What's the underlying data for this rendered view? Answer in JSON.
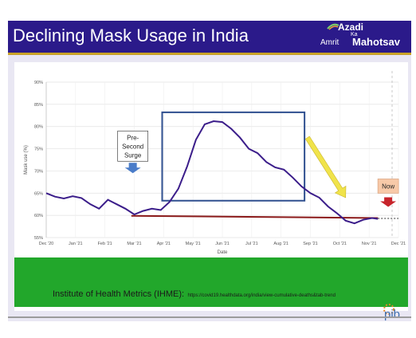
{
  "header": {
    "title": "Declining Mask Usage in India",
    "logo": {
      "line1": "Azadi",
      "line2": "Ka",
      "line3a": "Amrit",
      "line3b": "Mahotsav"
    }
  },
  "colors": {
    "title_bar": "#2b1a8a",
    "accent_gold": "#c9a227",
    "series_line": "#3b1d8a",
    "baseline": "#8b1a1a",
    "box": "#2f4f8f",
    "green_band": "#22a72b"
  },
  "chart_data": {
    "type": "line",
    "xlabel": "Date",
    "ylabel": "Mask use (%)",
    "ylim": [
      55,
      90
    ],
    "y_ticks": [
      "55%",
      "60%",
      "65%",
      "70%",
      "75%",
      "80%",
      "85%",
      "90%"
    ],
    "x_ticks": [
      "Dec '20",
      "Jan '21",
      "Feb '21",
      "Mar '21",
      "Apr '21",
      "May '21",
      "Jun '21",
      "Jul '21",
      "Aug '21",
      "Sep '21",
      "Oct '21",
      "Nov '21",
      "Dec '21"
    ],
    "series": [
      {
        "x": [
          0,
          0.3,
          0.6,
          0.9,
          1.2,
          1.5,
          1.8,
          2.1,
          2.4,
          2.7,
          3.0,
          3.3,
          3.6,
          3.9,
          4.2,
          4.5,
          4.8,
          5.1,
          5.4,
          5.7,
          6.0,
          6.3,
          6.6,
          6.9,
          7.2,
          7.5,
          7.8,
          8.1,
          8.4,
          8.7,
          9.0,
          9.3,
          9.6,
          9.9,
          10.2,
          10.5,
          10.8,
          11.1,
          11.3
        ],
        "y": [
          65,
          64.2,
          63.8,
          64.3,
          63.9,
          62.5,
          61.5,
          63.5,
          62.5,
          61.5,
          60.2,
          61,
          61.5,
          61.2,
          63,
          66,
          71,
          77,
          80.5,
          81.2,
          81,
          79.5,
          77.5,
          75,
          74,
          72,
          70.8,
          70.3,
          68.5,
          66.5,
          65,
          64,
          62,
          60.5,
          58.8,
          58.2,
          59,
          59.4,
          59.2
        ]
      }
    ],
    "baseline": {
      "from": [
        2.9,
        59.9
      ],
      "to": [
        11.3,
        59.4
      ]
    },
    "annotations": {
      "pre_surge": "Pre-\nSecond\nSurge",
      "now": "Now"
    }
  },
  "source": {
    "label": "Institute of Health Metrics (IHME):",
    "url": "https://covid19.healthdata.org/india/view-cumulative-deaths&tab-trend"
  },
  "footer": {
    "logo_text": "pib"
  }
}
